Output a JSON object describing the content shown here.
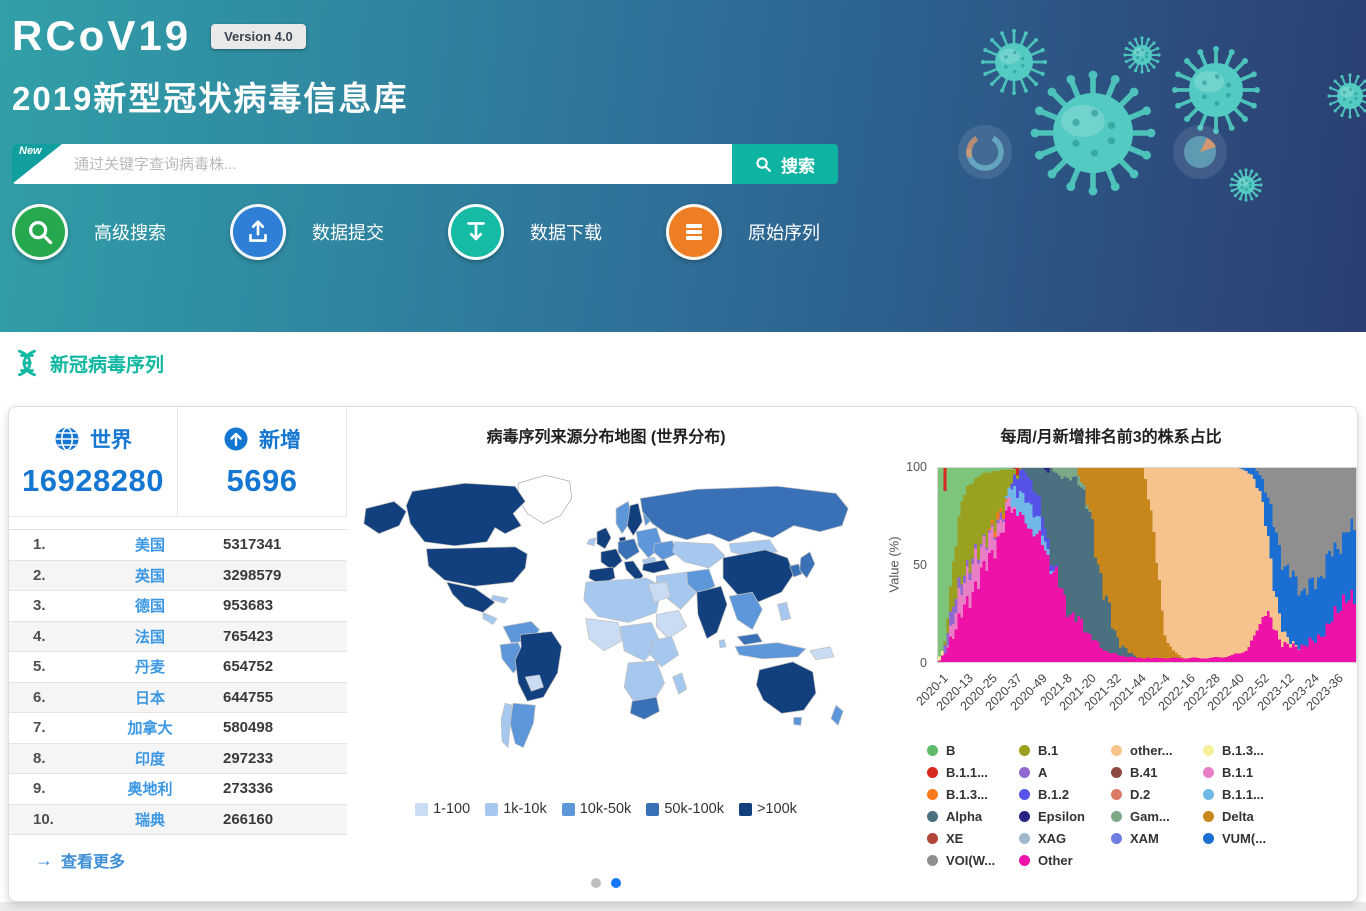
{
  "hero": {
    "logo": "RCoV19",
    "version_badge": "Version 4.0",
    "subtitle": "2019新型冠状病毒信息库",
    "search": {
      "ribbon": "New",
      "placeholder": "通过关键字查询病毒株...",
      "button": "搜索"
    },
    "quick_links": [
      {
        "label": "高级搜索",
        "color": "#25a84e",
        "icon": "magnifier-icon"
      },
      {
        "label": "数据提交",
        "color": "#2e7fd5",
        "icon": "upload-icon"
      },
      {
        "label": "数据下载",
        "color": "#16bba6",
        "icon": "download-icon"
      },
      {
        "label": "原始序列",
        "color": "#ee7e23",
        "icon": "sequence-list-icon"
      }
    ]
  },
  "section": {
    "title": "新冠病毒序列"
  },
  "stats": [
    {
      "label": "世界",
      "value": "16928280",
      "icon": "globe-icon"
    },
    {
      "label": "新增",
      "value": "5696",
      "icon": "arrow-up-circle-icon"
    }
  ],
  "countries": [
    {
      "rank": "1.",
      "name": "美国",
      "value": "5317341"
    },
    {
      "rank": "2.",
      "name": "英国",
      "value": "3298579"
    },
    {
      "rank": "3.",
      "name": "德国",
      "value": "953683"
    },
    {
      "rank": "4.",
      "name": "法国",
      "value": "765423"
    },
    {
      "rank": "5.",
      "name": "丹麦",
      "value": "654752"
    },
    {
      "rank": "6.",
      "name": "日本",
      "value": "644755"
    },
    {
      "rank": "7.",
      "name": "加拿大",
      "value": "580498"
    },
    {
      "rank": "8.",
      "name": "印度",
      "value": "297233"
    },
    {
      "rank": "9.",
      "name": "奥地利",
      "value": "273336"
    },
    {
      "rank": "10.",
      "name": "瑞典",
      "value": "266160"
    }
  ],
  "more_link": "查看更多",
  "map": {
    "title": "病毒序列来源分布地图 (世界分布)",
    "legend": [
      {
        "label": "1-100",
        "color": "#cadcf3"
      },
      {
        "label": "1k-10k",
        "color": "#a6c8ef"
      },
      {
        "label": "10k-50k",
        "color": "#5d97d9"
      },
      {
        "label": "50k-100k",
        "color": "#3a70b6"
      },
      {
        "label": ">100k",
        "color": "#123f7e"
      }
    ]
  },
  "pagination": {
    "dots": [
      {
        "active": false
      },
      {
        "active": true
      }
    ],
    "active_color": "#1677ff",
    "inactive_color": "#bfbfbf"
  },
  "chart_data": {
    "type": "area",
    "title": "每周/月新增排名前3的株系占比",
    "ylabel": "Value (%)",
    "ylim": [
      0,
      100
    ],
    "yticks": [
      100,
      50,
      0
    ],
    "grid": false,
    "legend_position": "bottom",
    "xticklabels": [
      "2020-1",
      "2020-13",
      "2020-25",
      "2020-37",
      "2020-49",
      "2021-8",
      "2021-20",
      "2021-32",
      "2021-44",
      "2022-4",
      "2022-16",
      "2022-28",
      "2022-40",
      "2022-52",
      "2023-12",
      "2023-24",
      "2023-36"
    ],
    "note_x_axis": "x encoded as fraction 0-1 of timeline 2020-1 .. 2023-45, values are percent share",
    "series": [
      {
        "name": "Other",
        "color": "#ef12a9",
        "points": [
          [
            0,
            0
          ],
          [
            0.02,
            5
          ],
          [
            0.04,
            15
          ],
          [
            0.06,
            28
          ],
          [
            0.08,
            38
          ],
          [
            0.1,
            48
          ],
          [
            0.12,
            62
          ],
          [
            0.14,
            70
          ],
          [
            0.16,
            78
          ],
          [
            0.18,
            85
          ],
          [
            0.2,
            80
          ],
          [
            0.22,
            72
          ],
          [
            0.24,
            62
          ],
          [
            0.26,
            50
          ],
          [
            0.28,
            42
          ],
          [
            0.3,
            30
          ],
          [
            0.32,
            22
          ],
          [
            0.34,
            16
          ],
          [
            0.36,
            12
          ],
          [
            0.38,
            8
          ],
          [
            0.4,
            5
          ],
          [
            0.44,
            3
          ],
          [
            0.48,
            2
          ],
          [
            0.55,
            2
          ],
          [
            0.6,
            2
          ],
          [
            0.65,
            2
          ],
          [
            0.7,
            3
          ],
          [
            0.74,
            6
          ],
          [
            0.76,
            12
          ],
          [
            0.78,
            22
          ],
          [
            0.8,
            14
          ],
          [
            0.82,
            8
          ],
          [
            0.85,
            7
          ],
          [
            0.88,
            8
          ],
          [
            0.9,
            10
          ],
          [
            0.93,
            15
          ],
          [
            0.96,
            28
          ],
          [
            1,
            33
          ]
        ]
      },
      {
        "name": "B.1.1",
        "color": "#e87fc6",
        "points": [
          [
            0.02,
            0
          ],
          [
            0.04,
            8
          ],
          [
            0.06,
            14
          ],
          [
            0.08,
            16
          ],
          [
            0.1,
            15
          ],
          [
            0.12,
            13
          ],
          [
            0.14,
            10
          ],
          [
            0.16,
            6
          ],
          [
            0.18,
            2
          ],
          [
            0.19,
            0
          ]
        ]
      },
      {
        "name": "B.1.3 (yellow)",
        "color": "#f6f09b",
        "points": [
          [
            0,
            3
          ],
          [
            0.01,
            2
          ],
          [
            0.015,
            0
          ]
        ]
      },
      {
        "name": "A",
        "color": "#9069ce",
        "points": [
          [
            0.01,
            0
          ],
          [
            0.02,
            6
          ],
          [
            0.04,
            7
          ],
          [
            0.06,
            5
          ],
          [
            0.08,
            3
          ],
          [
            0.1,
            2
          ],
          [
            0.13,
            1
          ],
          [
            0.14,
            1
          ],
          [
            0.15,
            5
          ],
          [
            0.16,
            0
          ]
        ]
      },
      {
        "name": "B.1.3 (orange)",
        "color": "#f97a18",
        "points": [
          [
            0.12,
            0
          ],
          [
            0.13,
            3
          ],
          [
            0.145,
            4
          ],
          [
            0.16,
            2
          ],
          [
            0.17,
            0
          ]
        ]
      },
      {
        "name": "B.1.1 (ltblue)",
        "color": "#6fb8e8",
        "points": [
          [
            0.16,
            0
          ],
          [
            0.18,
            10
          ],
          [
            0.2,
            13
          ],
          [
            0.22,
            12
          ],
          [
            0.24,
            8
          ],
          [
            0.26,
            3
          ],
          [
            0.28,
            0
          ]
        ]
      },
      {
        "name": "B.1.2",
        "color": "#5653e8",
        "points": [
          [
            0.17,
            0
          ],
          [
            0.19,
            10
          ],
          [
            0.21,
            15
          ],
          [
            0.23,
            13
          ],
          [
            0.25,
            8
          ],
          [
            0.27,
            3
          ],
          [
            0.29,
            0
          ]
        ]
      },
      {
        "name": "Alpha",
        "color": "#4b7180",
        "points": [
          [
            0.2,
            0
          ],
          [
            0.22,
            5
          ],
          [
            0.24,
            15
          ],
          [
            0.26,
            30
          ],
          [
            0.28,
            45
          ],
          [
            0.3,
            58
          ],
          [
            0.32,
            62
          ],
          [
            0.34,
            60
          ],
          [
            0.36,
            50
          ],
          [
            0.38,
            38
          ],
          [
            0.4,
            25
          ],
          [
            0.42,
            12
          ],
          [
            0.44,
            5
          ],
          [
            0.46,
            2
          ],
          [
            0.48,
            0
          ]
        ]
      },
      {
        "name": "Epsilon",
        "color": "#2a2386",
        "points": [
          [
            0.255,
            0
          ],
          [
            0.262,
            3
          ],
          [
            0.27,
            0
          ]
        ]
      },
      {
        "name": "Gam",
        "color": "#7ca887",
        "points": [
          [
            0.27,
            0
          ],
          [
            0.29,
            4
          ],
          [
            0.31,
            5
          ],
          [
            0.33,
            4
          ],
          [
            0.35,
            2
          ],
          [
            0.37,
            0
          ]
        ]
      },
      {
        "name": "Delta",
        "color": "#c8871c",
        "points": [
          [
            0.33,
            0
          ],
          [
            0.35,
            8
          ],
          [
            0.37,
            25
          ],
          [
            0.39,
            48
          ],
          [
            0.41,
            68
          ],
          [
            0.43,
            85
          ],
          [
            0.45,
            92
          ],
          [
            0.47,
            95
          ],
          [
            0.49,
            93
          ],
          [
            0.5,
            88
          ],
          [
            0.51,
            75
          ],
          [
            0.52,
            55
          ],
          [
            0.53,
            35
          ],
          [
            0.54,
            18
          ],
          [
            0.55,
            8
          ],
          [
            0.57,
            2
          ],
          [
            0.59,
            0
          ]
        ]
      },
      {
        "name": "other (recomb)",
        "color": "#f7c38d",
        "points": [
          [
            0.49,
            0
          ],
          [
            0.5,
            8
          ],
          [
            0.51,
            22
          ],
          [
            0.52,
            42
          ],
          [
            0.53,
            62
          ],
          [
            0.54,
            78
          ],
          [
            0.55,
            88
          ],
          [
            0.57,
            95
          ],
          [
            0.6,
            97
          ],
          [
            0.64,
            97
          ],
          [
            0.68,
            96
          ],
          [
            0.71,
            94
          ],
          [
            0.73,
            90
          ],
          [
            0.75,
            80
          ],
          [
            0.77,
            55
          ],
          [
            0.79,
            28
          ],
          [
            0.81,
            12
          ],
          [
            0.83,
            4
          ],
          [
            0.85,
            1
          ],
          [
            0.87,
            0
          ]
        ]
      },
      {
        "name": "VUM",
        "color": "#1b6ed2",
        "points": [
          [
            0.72,
            0
          ],
          [
            0.75,
            3
          ],
          [
            0.77,
            8
          ],
          [
            0.79,
            16
          ],
          [
            0.81,
            25
          ],
          [
            0.83,
            30
          ],
          [
            0.85,
            30
          ],
          [
            0.87,
            28
          ],
          [
            0.89,
            25
          ],
          [
            0.91,
            28
          ],
          [
            0.93,
            32
          ],
          [
            0.95,
            30
          ],
          [
            0.97,
            32
          ],
          [
            1,
            36
          ]
        ]
      },
      {
        "name": "VOI",
        "color": "#8f8f8f",
        "points": [
          [
            0.76,
            0
          ],
          [
            0.78,
            6
          ],
          [
            0.8,
            18
          ],
          [
            0.82,
            34
          ],
          [
            0.84,
            48
          ],
          [
            0.86,
            55
          ],
          [
            0.88,
            58
          ],
          [
            0.9,
            55
          ],
          [
            0.92,
            48
          ],
          [
            0.94,
            42
          ],
          [
            0.96,
            36
          ],
          [
            0.98,
            32
          ],
          [
            1,
            30
          ]
        ]
      },
      {
        "name": "B.1",
        "color": "#9aa01f",
        "points": [
          [
            0.015,
            0
          ],
          [
            0.03,
            12
          ],
          [
            0.04,
            25
          ],
          [
            0.05,
            35
          ],
          [
            0.06,
            42
          ],
          [
            0.08,
            45
          ],
          [
            0.1,
            42
          ],
          [
            0.12,
            36
          ],
          [
            0.14,
            30
          ],
          [
            0.15,
            25
          ],
          [
            0.16,
            18
          ],
          [
            0.17,
            10
          ],
          [
            0.18,
            4
          ],
          [
            0.2,
            0
          ]
        ]
      },
      {
        "name": "B",
        "color": "#7cc57b",
        "points": [
          [
            0,
            97
          ],
          [
            0.01,
            90
          ],
          [
            0.02,
            75
          ],
          [
            0.03,
            55
          ],
          [
            0.04,
            38
          ],
          [
            0.05,
            25
          ],
          [
            0.06,
            16
          ],
          [
            0.08,
            8
          ],
          [
            0.1,
            4
          ],
          [
            0.13,
            2
          ],
          [
            0.16,
            1
          ],
          [
            0.2,
            0
          ]
        ]
      },
      {
        "name": "B.1.1 (red)",
        "color": "#d6281e",
        "points": [
          [
            0.012,
            0
          ],
          [
            0.016,
            14
          ],
          [
            0.02,
            0
          ],
          [
            0.183,
            0
          ],
          [
            0.188,
            8
          ],
          [
            0.193,
            0
          ]
        ]
      }
    ],
    "stack_order": "bottom-to-top, values normalized to 100%",
    "legend": [
      {
        "label": "B",
        "color": "#5fbb6b"
      },
      {
        "label": "B.1",
        "color": "#9aa01f"
      },
      {
        "label": "other...",
        "color": "#f7c38d"
      },
      {
        "label": "B.1.3...",
        "color": "#f6f09b"
      },
      {
        "label": "B.1.1...",
        "color": "#d6281e"
      },
      {
        "label": "A",
        "color": "#9069ce"
      },
      {
        "label": "B.41",
        "color": "#8d4a42"
      },
      {
        "label": "B.1.1",
        "color": "#e87fc6"
      },
      {
        "label": "B.1.3...",
        "color": "#f97a18"
      },
      {
        "label": "B.1.2",
        "color": "#5653e8"
      },
      {
        "label": "D.2",
        "color": "#dd7a66"
      },
      {
        "label": "B.1.1...",
        "color": "#6fb8e8"
      },
      {
        "label": "Alpha",
        "color": "#4b7180"
      },
      {
        "label": "Epsilon",
        "color": "#2a2386"
      },
      {
        "label": "Gam...",
        "color": "#7ca887"
      },
      {
        "label": "Delta",
        "color": "#c8871c"
      },
      {
        "label": "XE",
        "color": "#b1473a"
      },
      {
        "label": "XAG",
        "color": "#9fb8cb"
      },
      {
        "label": "XAM",
        "color": "#6f7ce4"
      },
      {
        "label": "VUM(...",
        "color": "#1b6ed2"
      },
      {
        "label": "VOI(W...",
        "color": "#8f8f8f"
      },
      {
        "label": "Other",
        "color": "#ef12a9"
      }
    ]
  }
}
